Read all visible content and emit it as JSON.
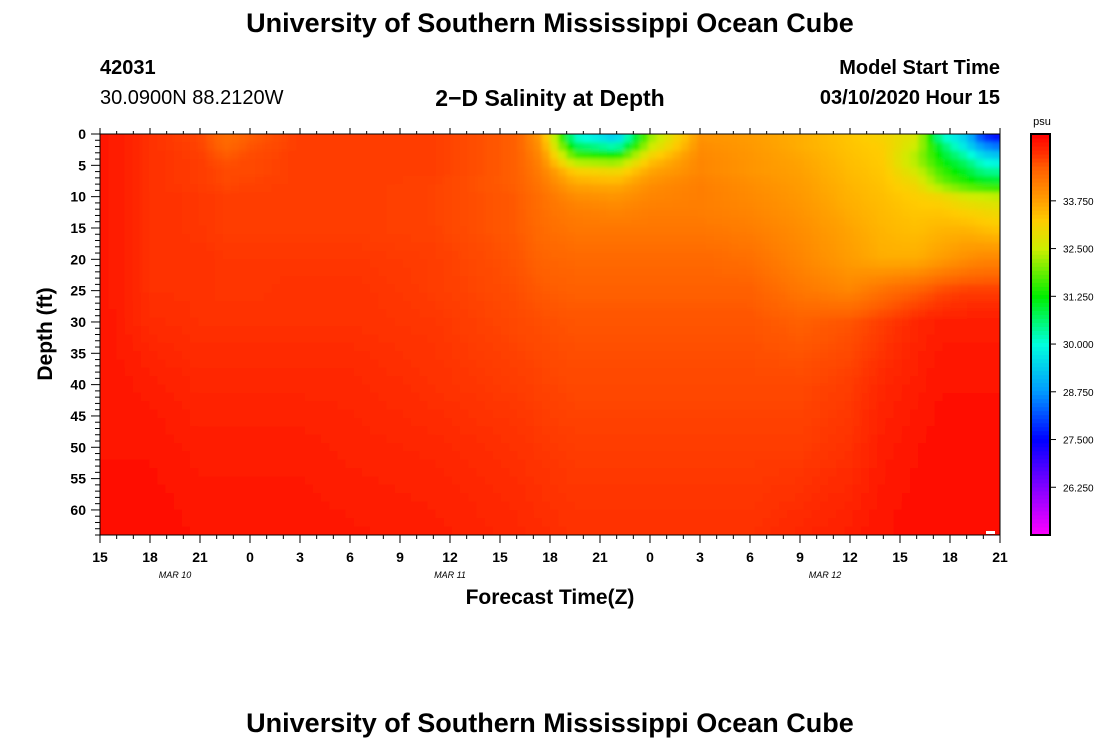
{
  "page": {
    "title_top": "University of Southern Mississippi Ocean Cube",
    "title_bottom": "University of Southern Mississippi Ocean Cube",
    "station_id": "42031",
    "station_coords": "30.0900N 88.2120W",
    "chart_title": "2−D Salinity at Depth",
    "model_start_label": "Model Start Time",
    "model_start_value": "03/10/2020 Hour 15"
  },
  "chart_data": {
    "type": "heatmap",
    "title": "2−D Salinity at Depth",
    "xlabel": "Forecast Time(Z)",
    "ylabel": "Depth (ft)",
    "x_ticks": [
      "15",
      "18",
      "21",
      "0",
      "3",
      "6",
      "9",
      "12",
      "15",
      "18",
      "21",
      "0",
      "3",
      "6",
      "9",
      "12",
      "15",
      "18",
      "21"
    ],
    "date_labels": [
      {
        "label": "MAR 10",
        "hour_index": 1.5
      },
      {
        "label": "MAR 11",
        "hour_index": 7
      },
      {
        "label": "MAR 12",
        "hour_index": 14.5
      }
    ],
    "y_ticks": [
      0,
      5,
      10,
      15,
      20,
      25,
      30,
      35,
      40,
      45,
      50,
      55,
      60
    ],
    "ylim": [
      0,
      64
    ],
    "xlim_hours": [
      0,
      54
    ],
    "colorbar": {
      "unit": "psu",
      "range": [
        25,
        35.5
      ],
      "tick_labels": [
        "33.750",
        "32.500",
        "31.250",
        "30.000",
        "28.750",
        "27.500",
        "26.250"
      ],
      "tick_values": [
        33.75,
        32.5,
        31.25,
        30.0,
        28.75,
        27.5,
        26.25
      ],
      "stops": [
        {
          "v": 25.0,
          "c": "#ff00ff"
        },
        {
          "v": 26.2,
          "c": "#8800ff"
        },
        {
          "v": 27.5,
          "c": "#0000ff"
        },
        {
          "v": 28.75,
          "c": "#0099ff"
        },
        {
          "v": 30.0,
          "c": "#00ffdd"
        },
        {
          "v": 31.25,
          "c": "#00ee00"
        },
        {
          "v": 32.5,
          "c": "#ccee00"
        },
        {
          "v": 33.25,
          "c": "#ffcc00"
        },
        {
          "v": 33.75,
          "c": "#ffa000"
        },
        {
          "v": 34.6,
          "c": "#ff6000"
        },
        {
          "v": 35.0,
          "c": "#ff3000"
        },
        {
          "v": 35.5,
          "c": "#ff0000"
        }
      ]
    },
    "salinity_field": {
      "description": "salinity (psu) sampled on a grid of forecast hours (rows) vs depth ft (columns)",
      "depths_ft": [
        0,
        2,
        4,
        6,
        8,
        10,
        12,
        15,
        20,
        25,
        30,
        40,
        50,
        64
      ],
      "hours": [
        0,
        3,
        6,
        7.5,
        9,
        12,
        15,
        20,
        25,
        26.5,
        28.5,
        31,
        33,
        36,
        39,
        42,
        45,
        47,
        49,
        50.5,
        52,
        53,
        54
      ],
      "values": [
        [
          35.3,
          35.3,
          35.3,
          35.3,
          35.3,
          35.3,
          35.3,
          35.3,
          35.3,
          35.3,
          35.3,
          35.3,
          35.3,
          35.4
        ],
        [
          35.0,
          35.0,
          35.0,
          35.0,
          35.0,
          35.0,
          35.0,
          35.0,
          35.0,
          35.0,
          35.05,
          35.2,
          35.3,
          35.4
        ],
        [
          34.8,
          34.85,
          34.9,
          34.9,
          34.9,
          34.95,
          34.95,
          34.95,
          35.0,
          35.0,
          35.0,
          35.1,
          35.2,
          35.3
        ],
        [
          34.4,
          34.5,
          34.7,
          34.8,
          34.8,
          34.9,
          34.9,
          34.9,
          34.95,
          34.95,
          35.0,
          35.1,
          35.2,
          35.3
        ],
        [
          34.6,
          34.7,
          34.8,
          34.8,
          34.85,
          34.9,
          34.9,
          34.9,
          34.95,
          34.95,
          35.0,
          35.1,
          35.2,
          35.3
        ],
        [
          34.9,
          34.9,
          34.9,
          34.9,
          34.9,
          34.9,
          34.9,
          34.9,
          34.95,
          35.0,
          35.0,
          35.1,
          35.2,
          35.3
        ],
        [
          34.9,
          34.9,
          34.9,
          34.9,
          34.9,
          34.9,
          34.9,
          34.9,
          34.95,
          35.0,
          35.0,
          35.1,
          35.15,
          35.25
        ],
        [
          34.9,
          34.9,
          34.9,
          34.9,
          34.85,
          34.85,
          34.85,
          34.85,
          34.9,
          34.9,
          34.95,
          35.0,
          35.1,
          35.2
        ],
        [
          34.6,
          34.6,
          34.6,
          34.6,
          34.6,
          34.65,
          34.65,
          34.65,
          34.7,
          34.75,
          34.8,
          34.9,
          35.0,
          35.1
        ],
        [
          33.75,
          33.9,
          34.1,
          34.2,
          34.3,
          34.4,
          34.4,
          34.45,
          34.55,
          34.65,
          34.75,
          34.85,
          34.95,
          35.05
        ],
        [
          29.9,
          30.8,
          32.0,
          33.2,
          33.7,
          34.0,
          34.2,
          34.3,
          34.5,
          34.6,
          34.7,
          34.8,
          34.9,
          35.0
        ],
        [
          29.0,
          30.2,
          31.8,
          33.0,
          33.6,
          33.9,
          34.1,
          34.3,
          34.5,
          34.6,
          34.7,
          34.8,
          34.9,
          35.0
        ],
        [
          32.0,
          32.5,
          33.3,
          33.7,
          34.0,
          34.1,
          34.2,
          34.3,
          34.5,
          34.6,
          34.7,
          34.8,
          34.9,
          35.0
        ],
        [
          33.9,
          34.0,
          34.1,
          34.1,
          34.2,
          34.2,
          34.2,
          34.3,
          34.5,
          34.6,
          34.7,
          34.8,
          34.9,
          35.0
        ],
        [
          33.8,
          33.85,
          33.9,
          33.9,
          34.0,
          34.05,
          34.1,
          34.2,
          34.4,
          34.6,
          34.7,
          34.8,
          34.9,
          35.0
        ],
        [
          33.6,
          33.6,
          33.7,
          33.75,
          33.8,
          33.85,
          33.9,
          34.0,
          34.1,
          34.3,
          34.6,
          34.8,
          34.9,
          35.1
        ],
        [
          33.3,
          33.35,
          33.4,
          33.45,
          33.5,
          33.55,
          33.6,
          33.7,
          33.8,
          34.1,
          34.7,
          34.9,
          35.0,
          35.2
        ],
        [
          33.1,
          33.2,
          33.25,
          33.3,
          33.35,
          33.4,
          33.45,
          33.5,
          33.6,
          34.4,
          34.9,
          35.1,
          35.2,
          35.3
        ],
        [
          32.7,
          32.5,
          32.2,
          32.6,
          33.0,
          33.2,
          33.3,
          33.4,
          33.6,
          34.6,
          35.1,
          35.2,
          35.3,
          35.4
        ],
        [
          30.0,
          30.8,
          31.2,
          31.6,
          32.0,
          33.0,
          33.3,
          33.5,
          33.8,
          34.8,
          35.2,
          35.3,
          35.4,
          35.4
        ],
        [
          29.2,
          29.6,
          30.5,
          31.0,
          31.5,
          32.6,
          33.1,
          33.5,
          34.0,
          34.9,
          35.2,
          35.3,
          35.4,
          35.4
        ],
        [
          27.6,
          28.7,
          29.8,
          30.5,
          31.3,
          32.5,
          33.0,
          33.4,
          34.1,
          34.9,
          35.2,
          35.3,
          35.4,
          35.4
        ],
        [
          27.2,
          28.4,
          29.6,
          30.4,
          31.2,
          32.4,
          32.9,
          33.3,
          34.1,
          34.9,
          35.2,
          35.3,
          35.4,
          35.4
        ]
      ]
    }
  }
}
